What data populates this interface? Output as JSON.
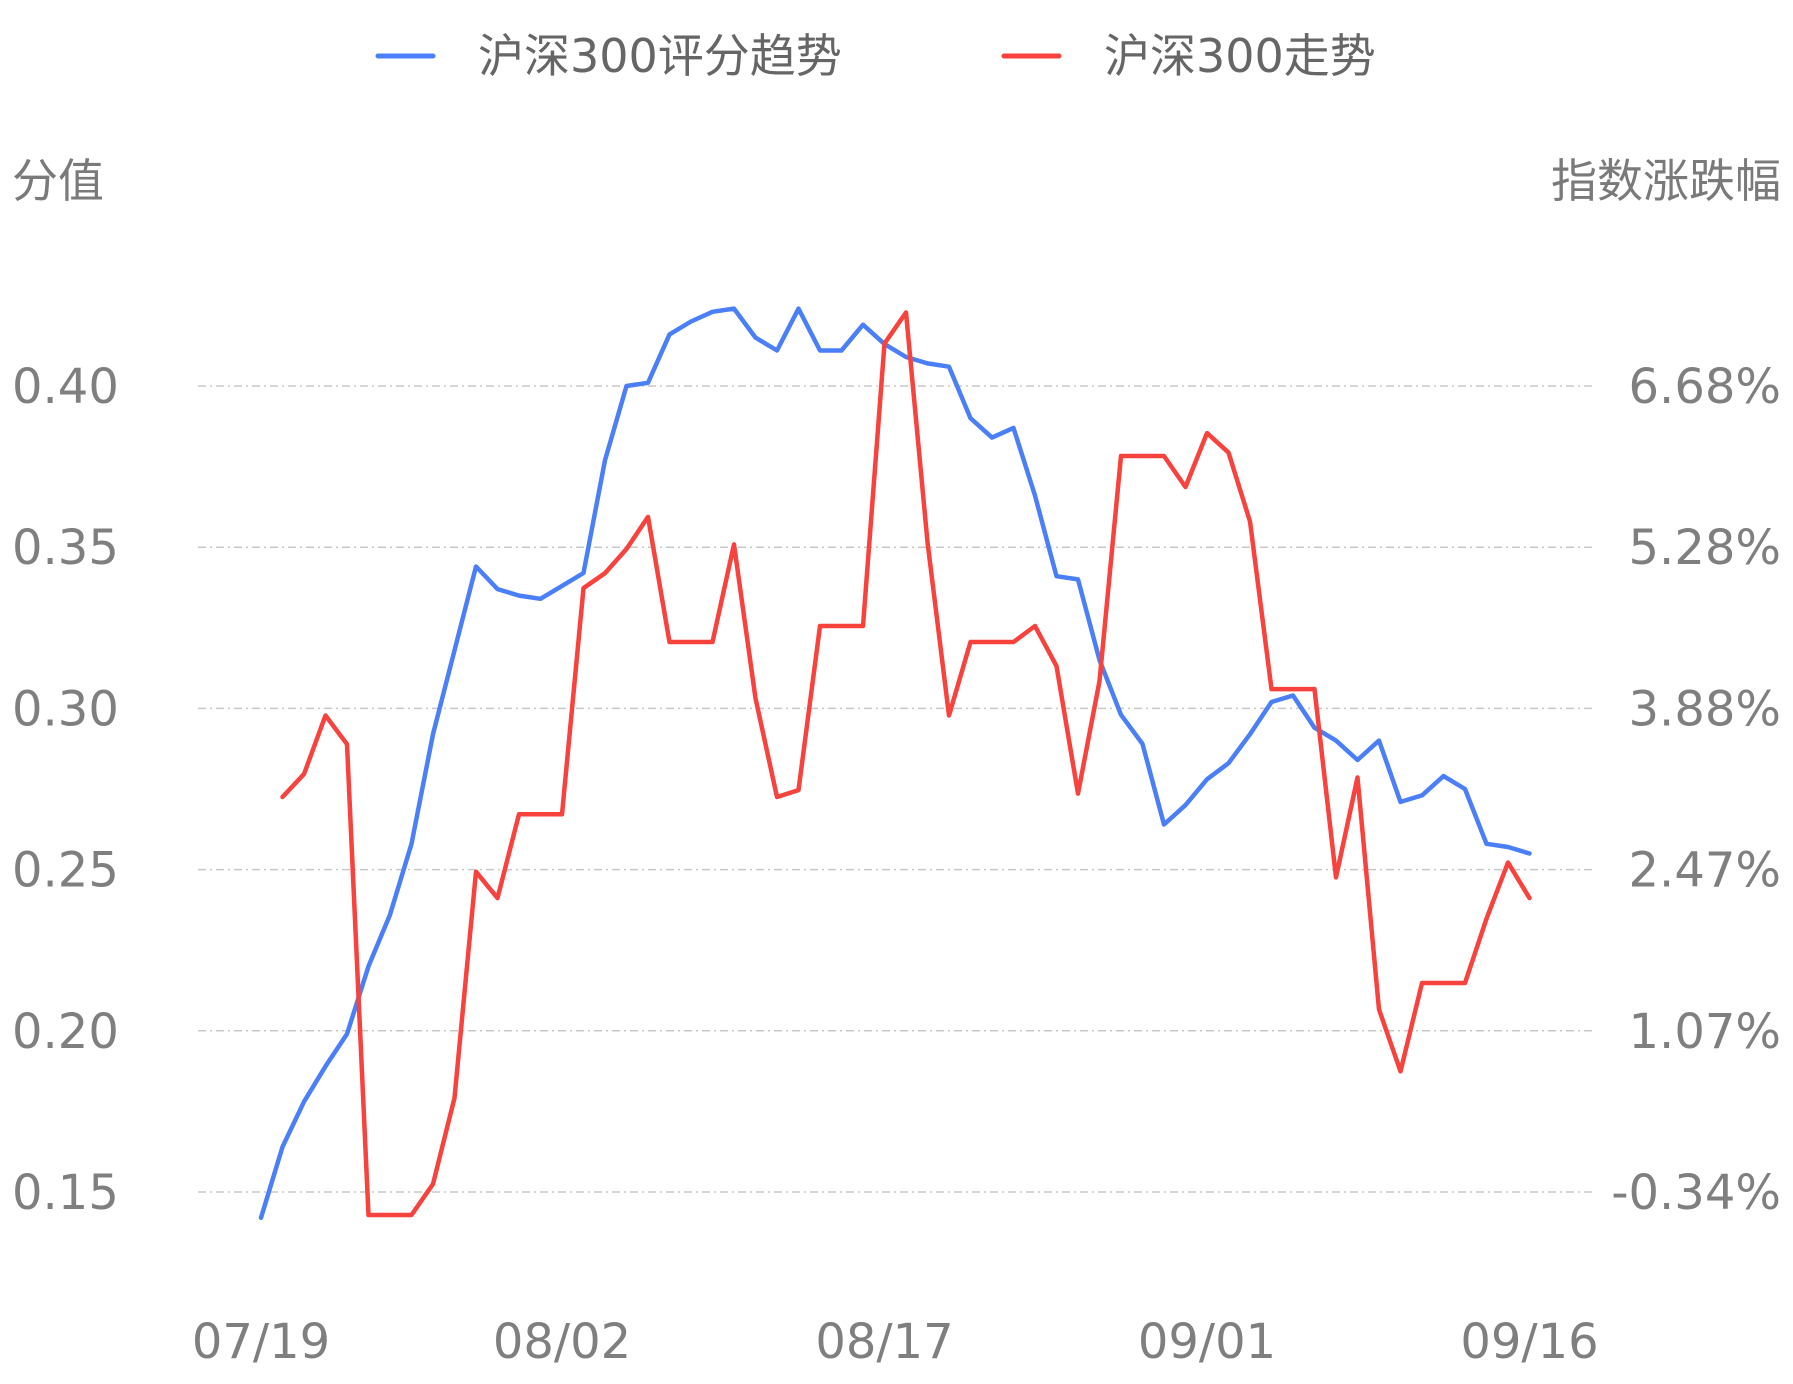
{
  "chart_data": {
    "type": "line",
    "legend": {
      "position": "top-center",
      "items": [
        "沪深300评分趋势",
        "沪深300走势"
      ]
    },
    "left_axis": {
      "title": "分值",
      "ticks": [
        "0.40",
        "0.35",
        "0.30",
        "0.25",
        "0.20",
        "0.15"
      ],
      "range": [
        0.15,
        0.4
      ]
    },
    "right_axis": {
      "title": "指数涨跌幅",
      "ticks": [
        "6.68%",
        "5.28%",
        "3.88%",
        "2.47%",
        "1.07%",
        "-0.34%"
      ],
      "range": [
        -0.34,
        6.68
      ]
    },
    "x_axis": {
      "ticks": [
        "07/19",
        "08/02",
        "08/17",
        "09/01",
        "09/16"
      ],
      "tick_index": [
        0,
        14,
        29,
        44,
        59
      ]
    },
    "grid": true,
    "series": [
      {
        "name": "沪深300评分趋势",
        "color": "#4a7ff7",
        "axis": "left",
        "values": [
          0.142,
          0.164,
          0.178,
          0.189,
          0.199,
          0.22,
          0.236,
          0.258,
          0.292,
          0.318,
          0.344,
          0.337,
          0.335,
          0.334,
          0.338,
          0.342,
          0.377,
          0.4,
          0.401,
          0.416,
          0.42,
          0.423,
          0.424,
          0.415,
          0.411,
          0.424,
          0.411,
          0.411,
          0.419,
          0.413,
          0.409,
          0.407,
          0.406,
          0.39,
          0.384,
          0.387,
          0.366,
          0.341,
          0.34,
          0.315,
          0.298,
          0.289,
          0.264,
          0.27,
          0.278,
          0.283,
          0.292,
          0.302,
          0.304,
          0.294,
          0.29,
          0.284,
          0.29,
          0.271,
          0.273,
          0.279,
          0.275,
          0.258,
          0.257,
          0.255
        ]
      },
      {
        "name": "沪深300走势",
        "color": "#f7423d",
        "axis": "right",
        "values": [
          null,
          3.1,
          3.3,
          3.81,
          3.56,
          -0.54,
          -0.54,
          -0.54,
          -0.27,
          0.48,
          2.45,
          2.22,
          2.95,
          2.95,
          2.95,
          4.92,
          5.05,
          5.26,
          5.54,
          4.45,
          4.45,
          4.45,
          5.3,
          3.96,
          3.1,
          3.16,
          4.59,
          4.59,
          4.59,
          7.05,
          7.32,
          5.32,
          3.81,
          4.45,
          4.45,
          4.45,
          4.59,
          4.24,
          3.13,
          4.11,
          6.07,
          6.07,
          6.07,
          5.8,
          6.27,
          6.1,
          5.5,
          4.04,
          4.04,
          4.04,
          2.4,
          3.27,
          1.25,
          0.71,
          1.48,
          1.48,
          1.48,
          2.04,
          2.53,
          2.22
        ]
      }
    ]
  }
}
